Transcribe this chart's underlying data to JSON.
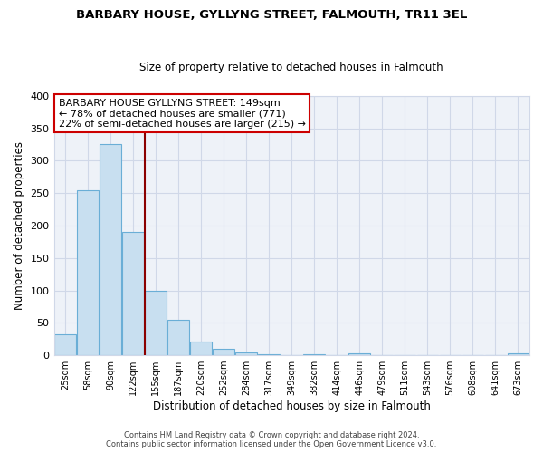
{
  "title": "BARBARY HOUSE, GYLLYNG STREET, FALMOUTH, TR11 3EL",
  "subtitle": "Size of property relative to detached houses in Falmouth",
  "xlabel": "Distribution of detached houses by size in Falmouth",
  "ylabel": "Number of detached properties",
  "footer_line1": "Contains HM Land Registry data © Crown copyright and database right 2024.",
  "footer_line2": "Contains public sector information licensed under the Open Government Licence v3.0.",
  "bar_labels": [
    "25sqm",
    "58sqm",
    "90sqm",
    "122sqm",
    "155sqm",
    "187sqm",
    "220sqm",
    "252sqm",
    "284sqm",
    "317sqm",
    "349sqm",
    "382sqm",
    "414sqm",
    "446sqm",
    "479sqm",
    "511sqm",
    "543sqm",
    "576sqm",
    "608sqm",
    "641sqm",
    "673sqm"
  ],
  "bar_values": [
    32,
    255,
    325,
    190,
    100,
    55,
    21,
    10,
    5,
    2,
    0,
    2,
    0,
    3,
    0,
    0,
    0,
    0,
    0,
    0,
    3
  ],
  "bar_color": "#c8dff0",
  "bar_edge_color": "#6aaed6",
  "highlight_line_color": "#8b0000",
  "annotation_title": "BARBARY HOUSE GYLLYNG STREET: 149sqm",
  "annotation_line2": "← 78% of detached houses are smaller (771)",
  "annotation_line3": "22% of semi-detached houses are larger (215) →",
  "annotation_box_color": "#ffffff",
  "annotation_box_edge": "#cc0000",
  "ylim": [
    0,
    400
  ],
  "yticks": [
    0,
    50,
    100,
    150,
    200,
    250,
    300,
    350,
    400
  ],
  "background_color": "#ffffff",
  "grid_color": "#d0d8e8",
  "plot_bg_color": "#eef2f8"
}
